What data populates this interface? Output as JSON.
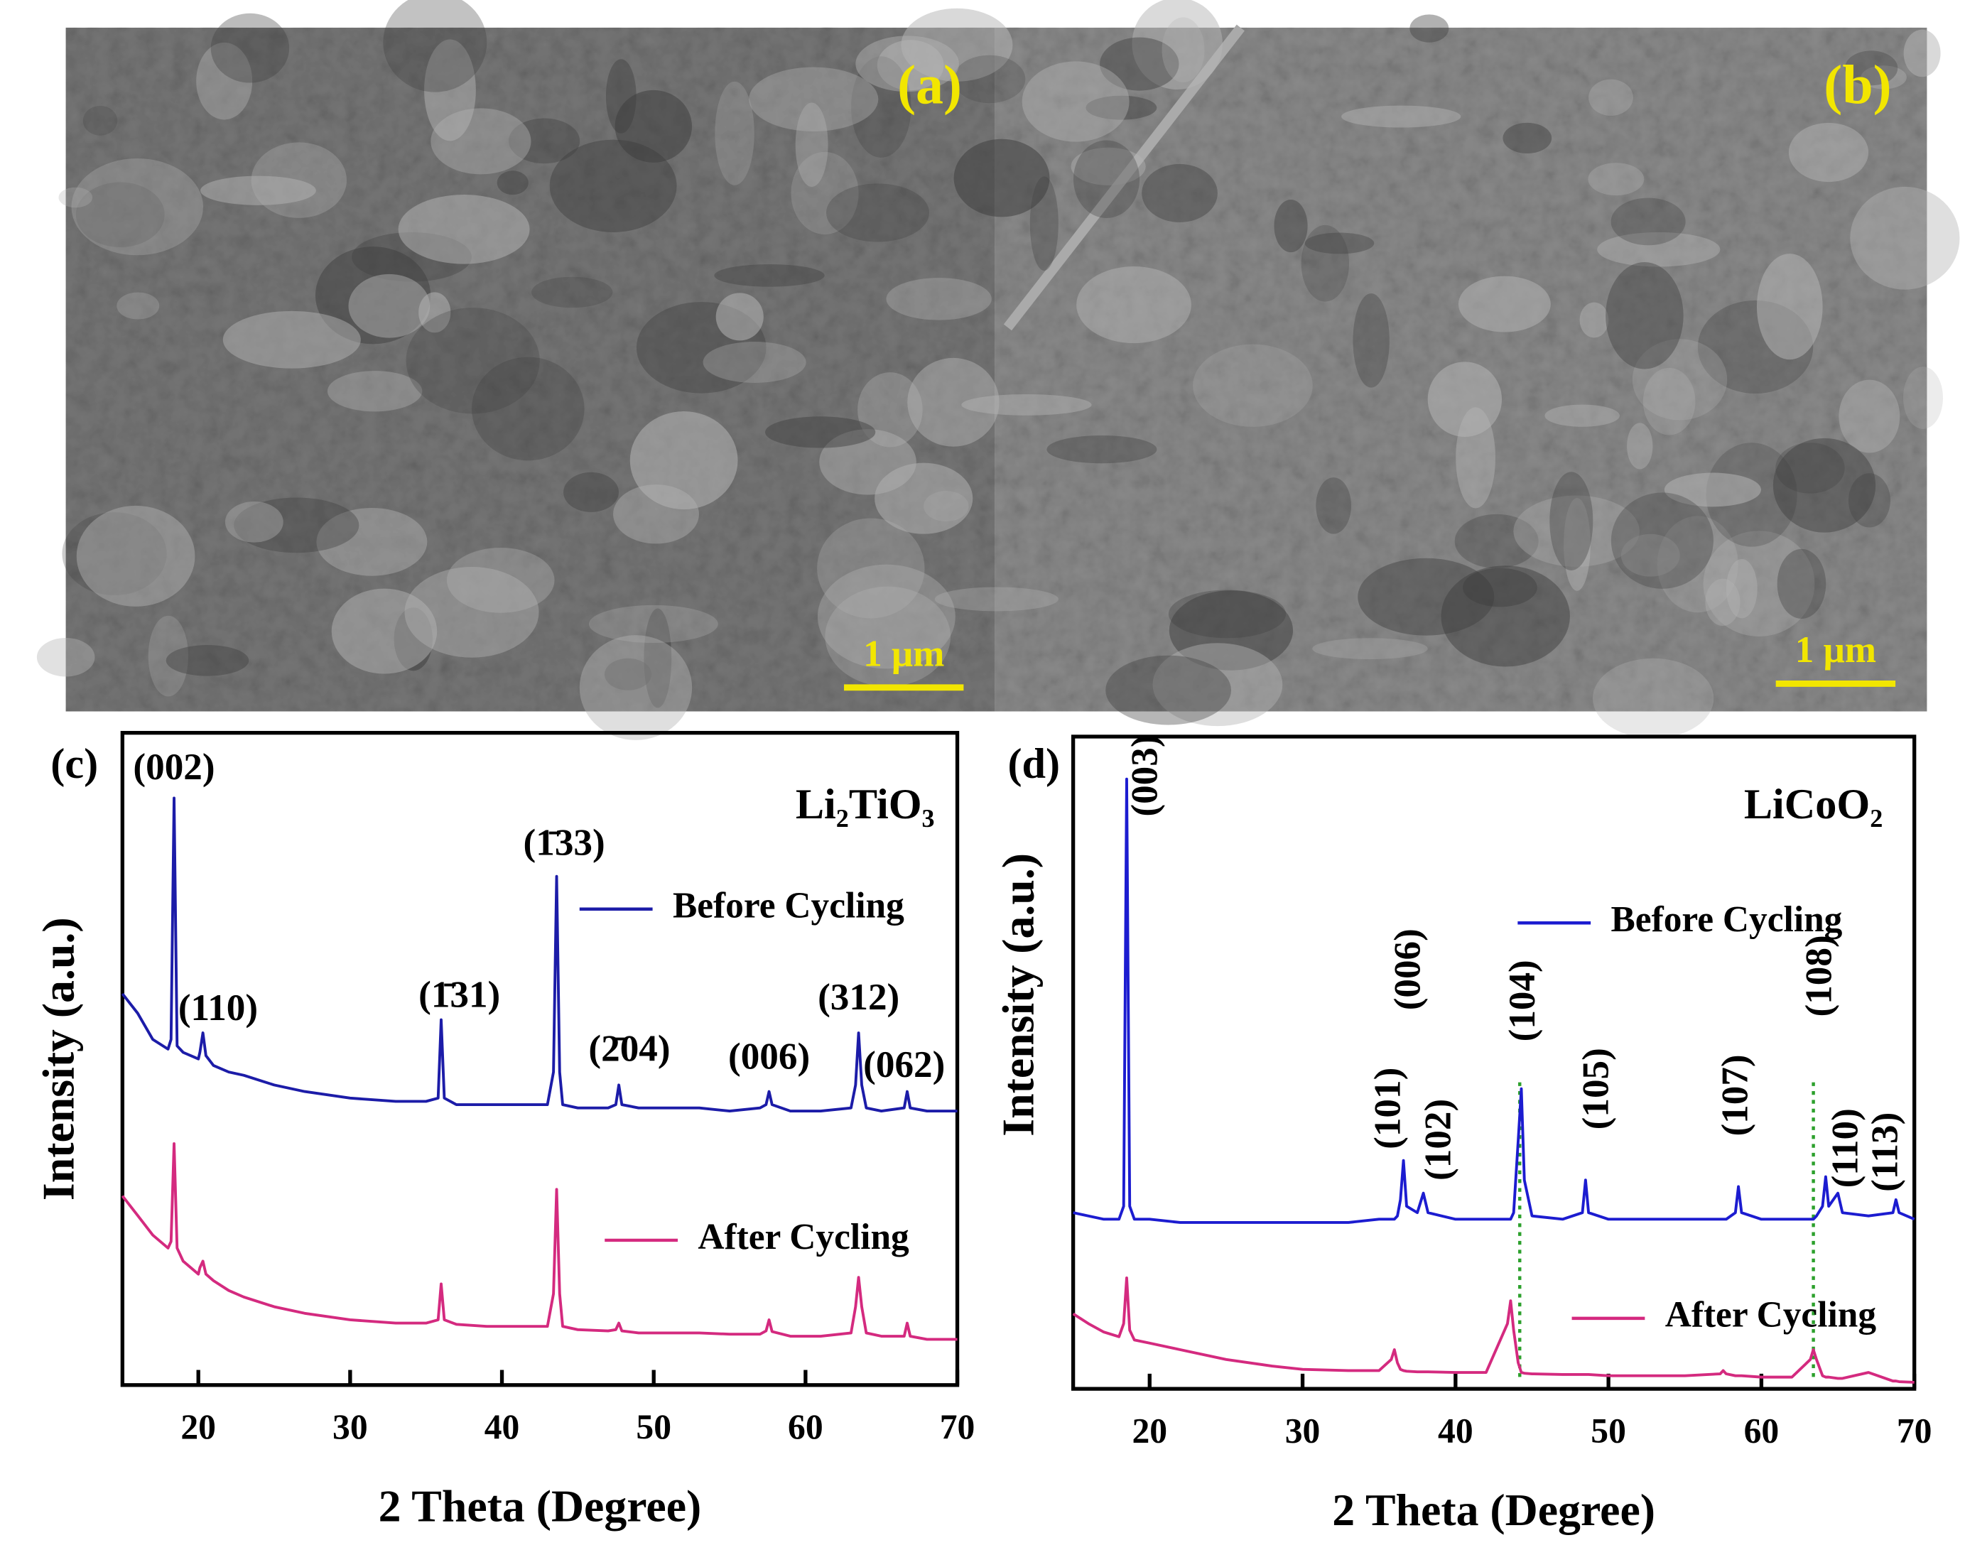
{
  "images": [
    {
      "label": "(a)",
      "scale_bar": "1 μm"
    },
    {
      "label": "(b)",
      "scale_bar": "1 μm"
    }
  ],
  "chart_data": [
    {
      "type": "line",
      "panel_label": "(c)",
      "title": "Li₂TiO₃",
      "xlabel": "2 Theta (Degree)",
      "ylabel": "Intensity (a.u.)",
      "xlim": [
        15,
        70
      ],
      "xticks": [
        20,
        30,
        40,
        50,
        60,
        70
      ],
      "ylim": [
        0,
        100
      ],
      "x": [
        15,
        16,
        17,
        18,
        18.2,
        18.4,
        18.6,
        19,
        20,
        20.1,
        20.3,
        20.5,
        21,
        22,
        23,
        25,
        27,
        30,
        33,
        35,
        35.8,
        36,
        36.2,
        37,
        39,
        41,
        43,
        43.4,
        43.6,
        43.8,
        44,
        45,
        47,
        47.5,
        47.7,
        47.9,
        49,
        51,
        53,
        55,
        57,
        57.4,
        57.6,
        57.8,
        59,
        61,
        63,
        63.3,
        63.5,
        63.7,
        64,
        65,
        66.5,
        66.7,
        66.9,
        68,
        70
      ],
      "series": [
        {
          "name": "Before Cycling",
          "color": "#1c1ca8",
          "values": [
            60,
            57,
            53,
            51.5,
            53,
            90,
            52,
            51,
            50,
            51,
            54,
            50.5,
            49,
            48,
            47.5,
            46,
            45,
            44,
            43.5,
            43.5,
            44,
            56,
            44,
            43,
            43,
            43,
            43,
            48,
            78,
            48,
            43,
            42.5,
            42.5,
            43,
            46,
            43,
            42.5,
            42.5,
            42.5,
            42,
            42.5,
            43,
            45,
            43,
            42,
            42,
            42.5,
            46,
            54,
            46,
            42.5,
            42,
            42.5,
            45,
            42.5,
            42,
            42
          ]
        },
        {
          "name": "After Cycling",
          "color": "#d42a7f",
          "values": [
            29,
            26,
            23,
            21,
            22,
            37,
            21,
            19,
            17,
            18,
            19,
            17,
            16,
            14.5,
            13.5,
            12,
            11,
            10,
            9.5,
            9.5,
            10,
            15.5,
            10,
            9.3,
            9,
            9,
            9,
            14,
            30,
            14,
            9,
            8.5,
            8.3,
            8.5,
            9.5,
            8.3,
            8,
            8,
            8,
            7.8,
            7.8,
            8.3,
            10,
            8.2,
            7.5,
            7.5,
            8,
            12,
            16.5,
            12,
            8,
            7.5,
            7.5,
            9.5,
            7.5,
            7,
            7
          ]
        }
      ],
      "annotations": [
        {
          "text": "(002)",
          "x": 18.4,
          "y": 94.2
        },
        {
          "text": "(110)",
          "x": 21.3,
          "y": 57.3
        },
        {
          "text": "(1̄31)",
          "x": 37.2,
          "y": 59.3
        },
        {
          "text": "(1̄33)",
          "x": 44.1,
          "y": 82.6
        },
        {
          "text": "(2̄04)",
          "x": 48.4,
          "y": 51
        },
        {
          "text": "(006)",
          "x": 57.6,
          "y": 49.8
        },
        {
          "text": "(312)",
          "x": 63.5,
          "y": 58.9
        },
        {
          "text": "(062)",
          "x": 66.5,
          "y": 48.6
        }
      ]
    },
    {
      "type": "line",
      "panel_label": "(d)",
      "title": "LiCoO₂",
      "xlabel": "2 Theta (Degree)",
      "ylabel": "Intensity (a.u.)",
      "xlim": [
        15,
        70
      ],
      "xticks": [
        20,
        30,
        40,
        50,
        60,
        70
      ],
      "ylim": [
        0,
        100
      ],
      "x": [
        15,
        16,
        17,
        18,
        18.3,
        18.5,
        18.7,
        19,
        20,
        22,
        25,
        28,
        30,
        33,
        35,
        35.8,
        36,
        36.2,
        36.4,
        36.6,
        36.8,
        37.5,
        37.9,
        38.2,
        40,
        42,
        43.4,
        43.6,
        43.8,
        44.1,
        44.3,
        44.5,
        45,
        47,
        48.3,
        48.5,
        48.7,
        50,
        53,
        55,
        57.3,
        57.5,
        57.7,
        58.3,
        58.5,
        58.7,
        60,
        62,
        63.2,
        63.4,
        63.6,
        64,
        64.2,
        64.4,
        65,
        65.3,
        67,
        68.6,
        68.8,
        69,
        70
      ],
      "series": [
        {
          "name": "Before Cycling",
          "color": "#1c1cd0",
          "values": [
            27,
            26.5,
            26,
            26,
            28,
            93.5,
            28,
            26,
            26,
            25.5,
            25.5,
            25.5,
            25.5,
            25.5,
            26,
            26,
            26,
            26.5,
            29,
            35,
            28,
            27,
            30,
            27,
            26,
            26,
            26,
            26,
            27,
            38,
            46,
            32,
            26.5,
            26,
            27,
            32,
            27,
            26,
            26,
            26,
            26,
            26,
            26,
            27,
            31,
            27,
            26,
            26,
            26,
            26,
            26.5,
            28,
            32.5,
            28,
            30,
            27,
            26.5,
            27,
            29,
            27,
            26
          ]
        },
        {
          "name": "After Cycling",
          "color": "#d42a7f",
          "values": [
            11.5,
            10,
            8.7,
            8,
            10,
            17,
            9,
            7.5,
            7,
            6,
            4.5,
            3.5,
            3,
            2.8,
            2.8,
            4.5,
            6,
            4,
            3,
            2.8,
            2.7,
            2.6,
            2.6,
            2.6,
            2.5,
            2.5,
            10,
            13.5,
            9,
            4,
            2.5,
            2.4,
            2.3,
            2.2,
            2.2,
            2.2,
            2.2,
            2,
            2,
            2,
            2.3,
            2.8,
            2.3,
            2,
            2,
            2,
            1.8,
            1.8,
            4.5,
            6,
            4.5,
            2,
            1.8,
            1.8,
            1.6,
            1.6,
            2.5,
            1.2,
            1.2,
            1.1,
            1
          ]
        }
      ],
      "vlines": [
        44.2,
        63.4
      ],
      "vline_color": "#2ca02c",
      "annotations": [
        {
          "text": "(003)",
          "x": 19.9,
          "y": 94
        },
        {
          "text": "(101)",
          "x": 35.8,
          "y": 43
        },
        {
          "text": "(006)",
          "x": 37.1,
          "y": 64.3
        },
        {
          "text": "(102)",
          "x": 39.1,
          "y": 38.2
        },
        {
          "text": "(104)",
          "x": 44.6,
          "y": 59.5
        },
        {
          "text": "(105)",
          "x": 49.4,
          "y": 46
        },
        {
          "text": "(107)",
          "x": 58.5,
          "y": 45
        },
        {
          "text": "(108)",
          "x": 64,
          "y": 63.3
        },
        {
          "text": "(110)",
          "x": 65.7,
          "y": 36.9
        },
        {
          "text": "(113)",
          "x": 68.3,
          "y": 36.3
        }
      ]
    }
  ]
}
